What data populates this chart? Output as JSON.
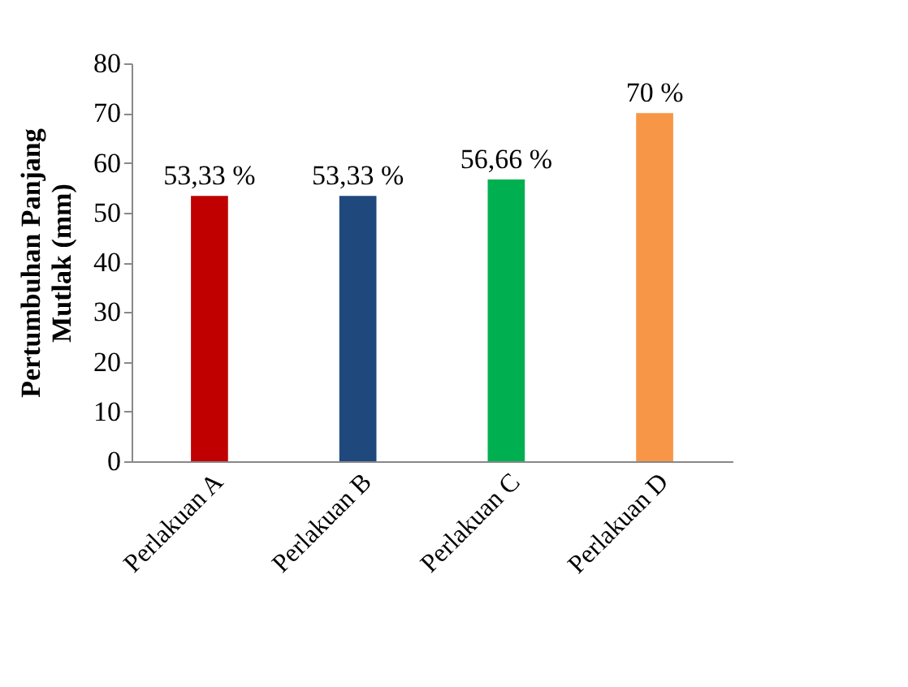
{
  "chart_data": {
    "type": "bar",
    "ylabel": "Pertumbuhan Panjang Mutlak (mm)",
    "categories": [
      "Perlakuan A",
      "Perlakuan B",
      "Perlakuan C",
      "Perlakuan D"
    ],
    "values": [
      53.33,
      53.33,
      56.66,
      70
    ],
    "colors": [
      "#c00000",
      "#1f497d",
      "#00b050",
      "#f79646"
    ],
    "value_labels": [
      "53,33 %",
      "53,33 %",
      "56,66 %",
      "70 %"
    ],
    "ylim": [
      0,
      80
    ],
    "yticks": [
      0,
      10,
      20,
      30,
      40,
      50,
      60,
      70,
      80
    ],
    "grid": false
  }
}
